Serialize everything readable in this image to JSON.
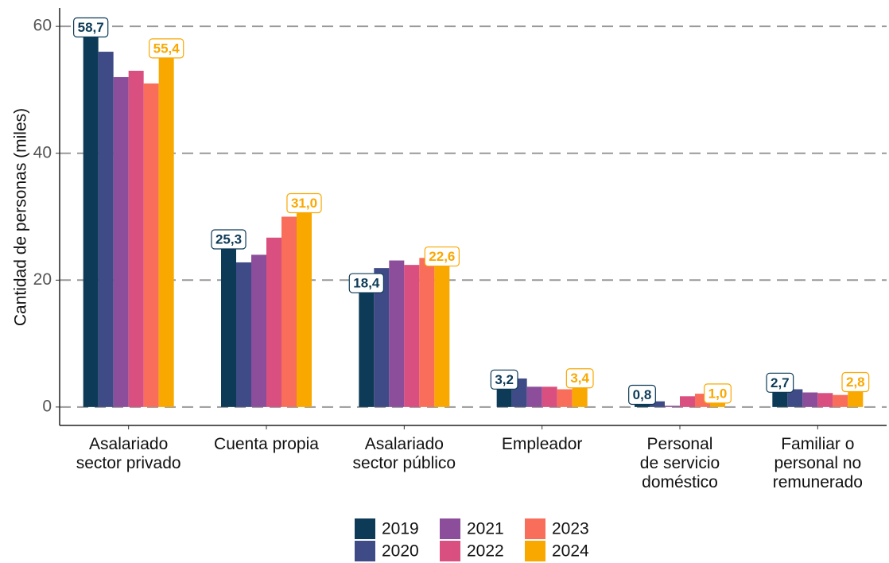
{
  "chart_data": {
    "type": "bar",
    "y_label": "Cantidad de personas (miles)",
    "categories": [
      "Asalariado\nsector privado",
      "Cuenta propia",
      "Asalariado\nsector público",
      "Empleador",
      "Personal\nde servicio\ndoméstico",
      "Familiar o\npersonal no\nremunerado"
    ],
    "series": [
      {
        "name": "2019",
        "color": "#0d3b57",
        "values": [
          58.7,
          25.3,
          18.4,
          3.2,
          0.8,
          2.7
        ],
        "value_labels": [
          "58,7",
          "25,3",
          "18,4",
          "3,2",
          "0,8",
          "2,7"
        ]
      },
      {
        "name": "2020",
        "color": "#3f4b86",
        "values": [
          56,
          22.8,
          21.9,
          4.5,
          0.9,
          2.8
        ]
      },
      {
        "name": "2021",
        "color": "#8c4e9a",
        "values": [
          52,
          24,
          23.1,
          3.2,
          0.2,
          2.3
        ]
      },
      {
        "name": "2022",
        "color": "#d94f7f",
        "values": [
          53,
          26.7,
          22.4,
          3.2,
          1.7,
          2.2
        ]
      },
      {
        "name": "2023",
        "color": "#f96e5a",
        "values": [
          51,
          30,
          23.5,
          2.8,
          2.1,
          1.9
        ]
      },
      {
        "name": "2024",
        "color": "#f9a800",
        "values": [
          55.4,
          31.0,
          22.6,
          3.4,
          1.0,
          2.8
        ],
        "value_labels": [
          "55,4",
          "31,0",
          "22,6",
          "3,4",
          "1,0",
          "2,8"
        ]
      }
    ],
    "ylim": [
      -2.9,
      62.9
    ],
    "yticks": [
      0,
      20,
      40,
      60
    ],
    "grid": true,
    "legend": "bottom"
  }
}
